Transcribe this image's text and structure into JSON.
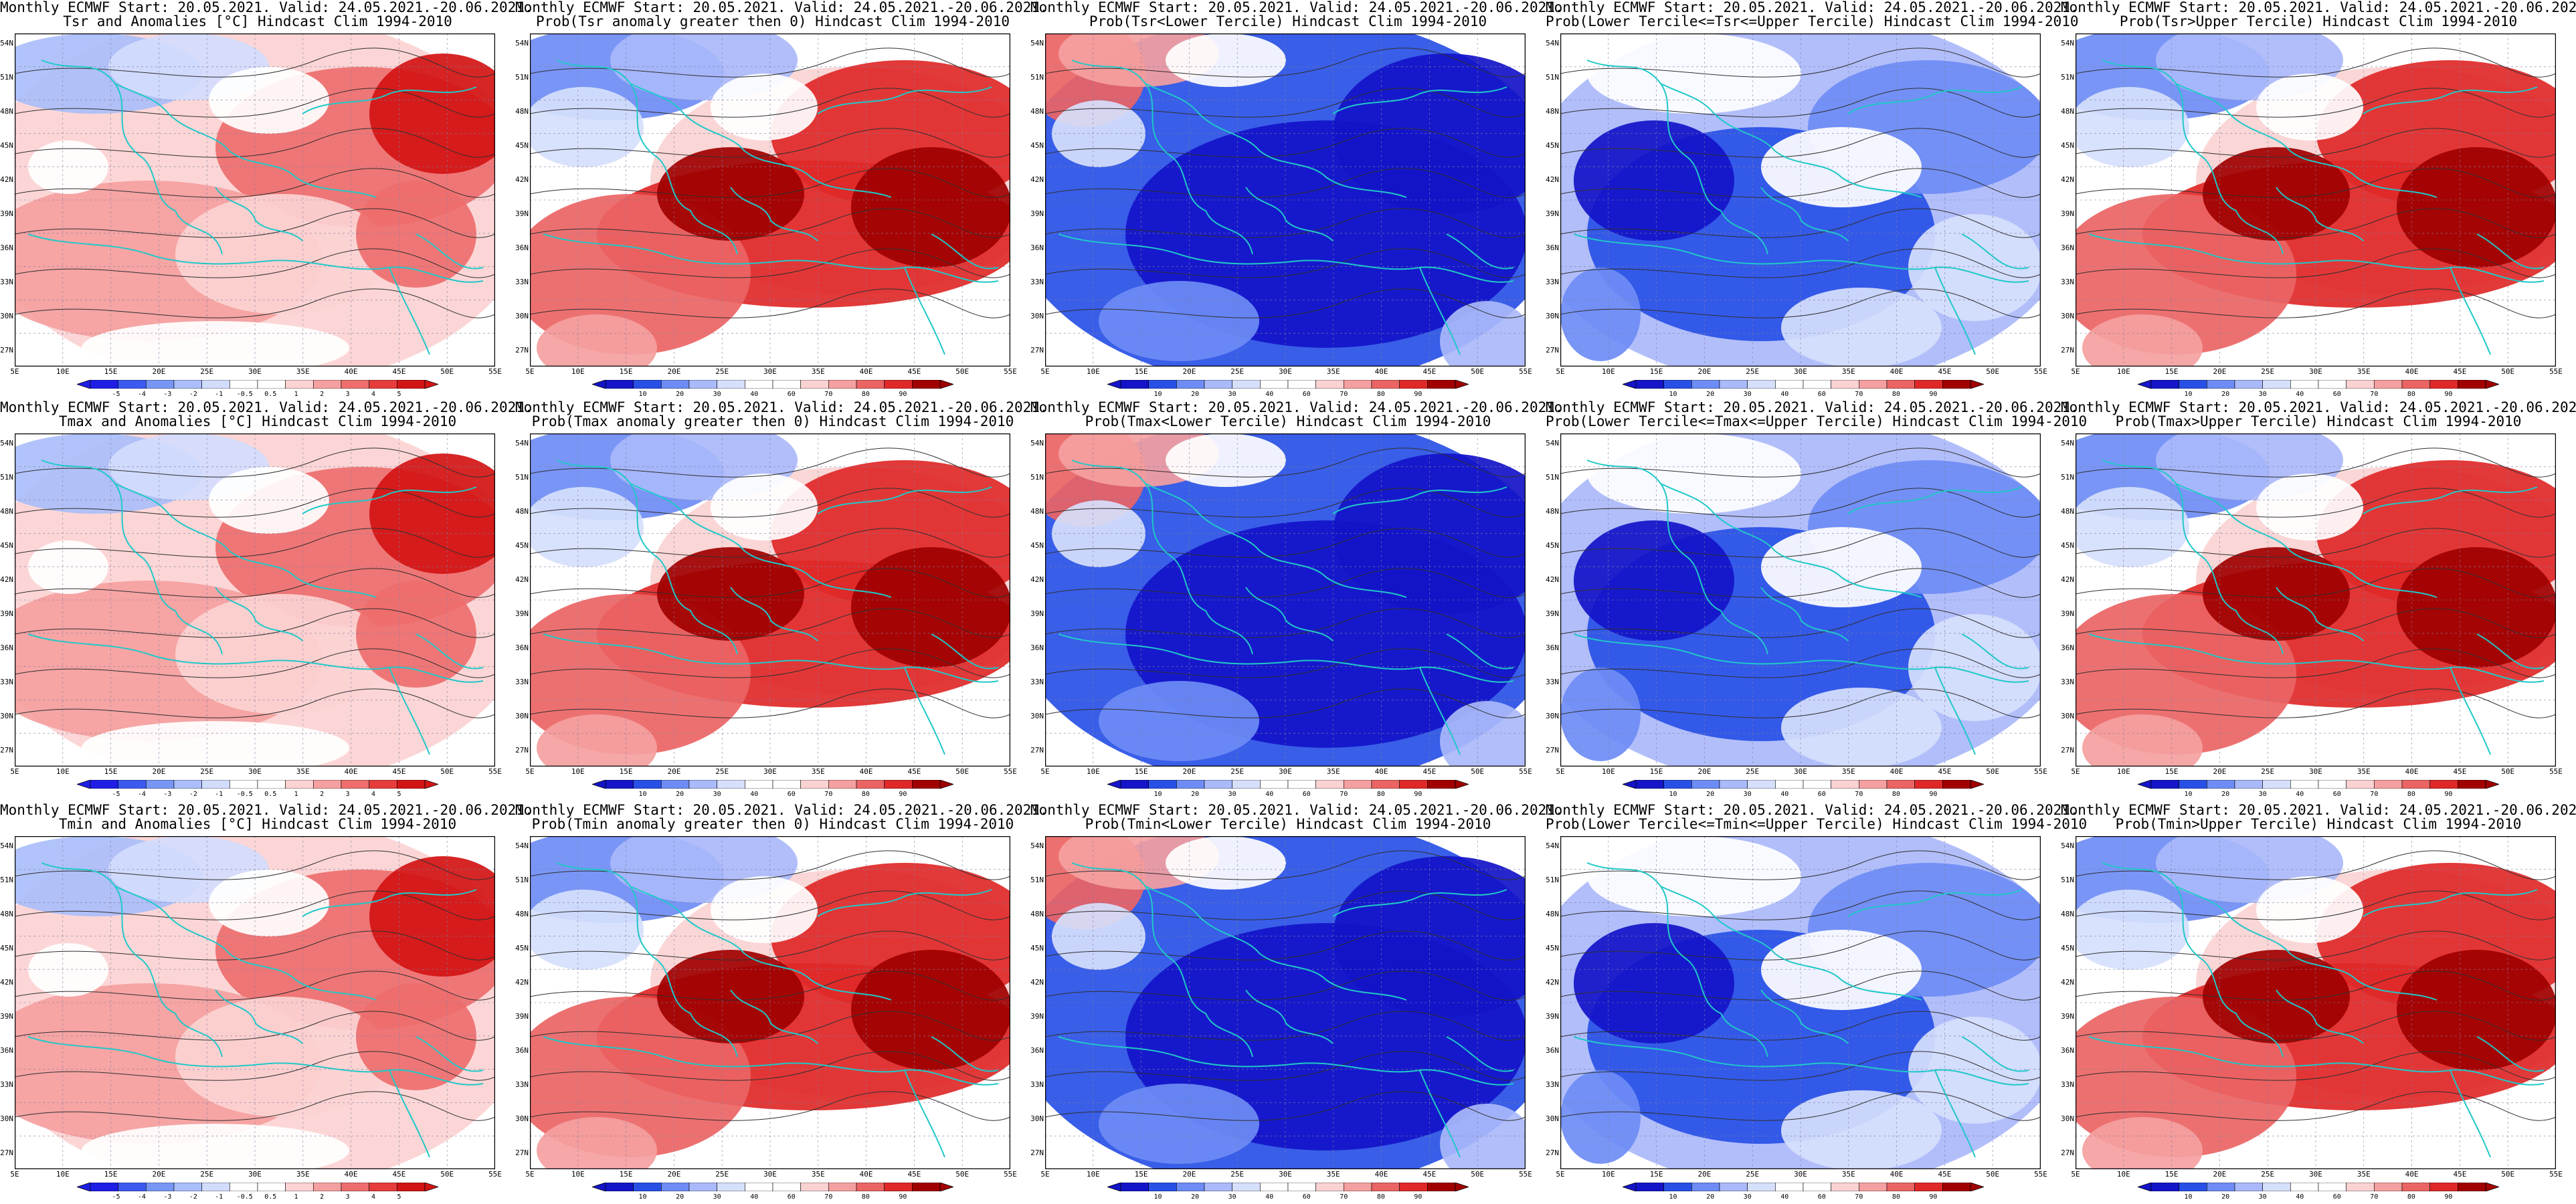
{
  "colors": {
    "coast": "#20c8c8",
    "contour": "#303030",
    "frame": "#000000",
    "prob_scale": [
      "#1414c8",
      "#2850e6",
      "#6e8cf5",
      "#aab9fa",
      "#d6e0fc",
      "#ffffff",
      "#ffffff",
      "#fad2d2",
      "#f5a0a0",
      "#eb6464",
      "#e02828",
      "#a00000"
    ],
    "anom_scale": [
      "#1e1ee6",
      "#3c5af0",
      "#7896f5",
      "#aabefa",
      "#d2dcfc",
      "#ffffff",
      "#ffffff",
      "#fcd2d2",
      "#f5a0a0",
      "#ee6e6e",
      "#e63c3c",
      "#d21414"
    ]
  },
  "map": {
    "lat_labels": [
      "54N",
      "51N",
      "48N",
      "45N",
      "42N",
      "39N",
      "36N",
      "33N",
      "30N",
      "27N"
    ],
    "lon_labels": [
      "5E",
      "10E",
      "15E",
      "20E",
      "25E",
      "30E",
      "35E",
      "40E",
      "45E",
      "50E",
      "55E"
    ]
  },
  "colorbars": {
    "anomaly_labels": [
      "-5",
      "-4",
      "-3",
      "-2",
      "-1",
      "-0.5",
      "0.5",
      "1",
      "2",
      "3",
      "4",
      "5"
    ],
    "probability_labels": [
      "10",
      "20",
      "30",
      "40",
      "60",
      "70",
      "80",
      "90"
    ]
  },
  "header_line": "Monthly ECMWF Start: 20.05.2021. Valid: 24.05.2021.-20.06.2021.",
  "panels": [
    {
      "row": 0,
      "col": 0,
      "kind": "anom",
      "pattern": "anom",
      "title2": "Tsr and Anomalies [°C] Hindcast Clim 1994-2010"
    },
    {
      "row": 0,
      "col": 1,
      "kind": "prob",
      "pattern": "warm",
      "title2": "Prob(Tsr anomaly greater then 0) Hindcast Clim 1994-2010"
    },
    {
      "row": 0,
      "col": 2,
      "kind": "prob",
      "pattern": "cold",
      "title2": "Prob(Tsr<Lower Tercile) Hindcast Clim 1994-2010"
    },
    {
      "row": 0,
      "col": 3,
      "kind": "prob",
      "pattern": "mid",
      "title2": "Prob(Lower Tercile<=Tsr<=Upper Tercile) Hindcast Clim 1994-2010"
    },
    {
      "row": 0,
      "col": 4,
      "kind": "prob",
      "pattern": "warm",
      "title2": "Prob(Tsr>Upper Tercile) Hindcast Clim 1994-2010"
    },
    {
      "row": 1,
      "col": 0,
      "kind": "anom",
      "pattern": "anom",
      "title2": "Tmax and Anomalies [°C] Hindcast Clim 1994-2010"
    },
    {
      "row": 1,
      "col": 1,
      "kind": "prob",
      "pattern": "warm",
      "title2": "Prob(Tmax anomaly greater then 0) Hindcast Clim 1994-2010"
    },
    {
      "row": 1,
      "col": 2,
      "kind": "prob",
      "pattern": "cold",
      "title2": "Prob(Tmax<Lower Tercile) Hindcast Clim 1994-2010"
    },
    {
      "row": 1,
      "col": 3,
      "kind": "prob",
      "pattern": "mid",
      "title2": "Prob(Lower Tercile<=Tmax<=Upper Tercile) Hindcast Clim 1994-2010"
    },
    {
      "row": 1,
      "col": 4,
      "kind": "prob",
      "pattern": "warm",
      "title2": "Prob(Tmax>Upper Tercile) Hindcast Clim 1994-2010"
    },
    {
      "row": 2,
      "col": 0,
      "kind": "anom",
      "pattern": "anom",
      "title2": "Tmin and Anomalies [°C] Hindcast Clim 1994-2010"
    },
    {
      "row": 2,
      "col": 1,
      "kind": "prob",
      "pattern": "warm",
      "title2": "Prob(Tmin anomaly greater then 0) Hindcast Clim 1994-2010"
    },
    {
      "row": 2,
      "col": 2,
      "kind": "prob",
      "pattern": "cold",
      "title2": "Prob(Tmin<Lower Tercile) Hindcast Clim 1994-2010"
    },
    {
      "row": 2,
      "col": 3,
      "kind": "prob",
      "pattern": "mid",
      "title2": "Prob(Lower Tercile<=Tmin<=Upper Tercile) Hindcast Clim 1994-2010"
    },
    {
      "row": 2,
      "col": 4,
      "kind": "prob",
      "pattern": "warm",
      "title2": "Prob(Tmin>Upper Tercile) Hindcast Clim 1994-2010"
    }
  ]
}
